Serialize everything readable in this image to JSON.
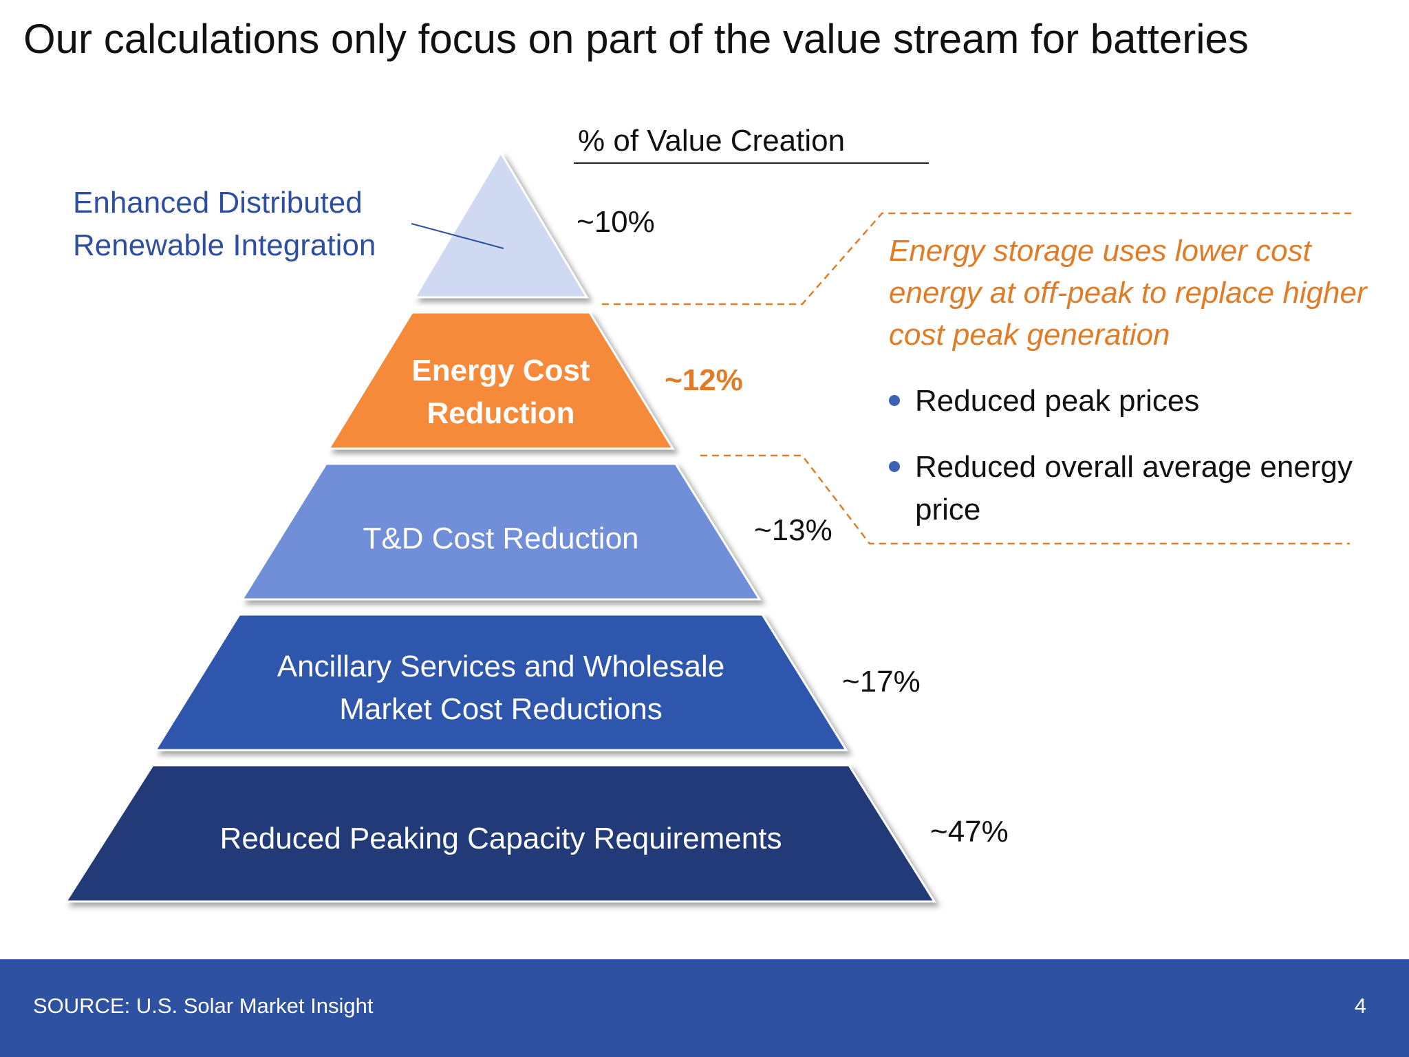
{
  "title": "Our calculations only focus on part of the value stream for batteries",
  "header": {
    "label": "% of Value Creation"
  },
  "colors": {
    "tier1": "#cfdaf2",
    "tier2": "#f58a3b",
    "tier3": "#6f8fd8",
    "tier4": "#2e56ad",
    "tier5": "#213b78",
    "accent_orange": "#e07b26",
    "label_blue": "#2e4f9f",
    "footer_blue": "#2e51a1"
  },
  "tiers": [
    {
      "label": "Enhanced Distributed Renewable Integration",
      "pct": "~10%"
    },
    {
      "label": "Energy Cost Reduction",
      "pct": "~12%"
    },
    {
      "label": "T&D Cost Reduction",
      "pct": "~13%"
    },
    {
      "label": "Ancillary Services and Wholesale Market Cost Reductions",
      "pct": "~17%"
    },
    {
      "label": "Reduced Peaking Capacity Requirements",
      "pct": "~47%"
    }
  ],
  "callout": {
    "text": "Energy storage uses lower cost energy at off-peak to replace higher cost peak generation",
    "bullets": [
      "Reduced peak prices",
      "Reduced overall average energy price"
    ]
  },
  "footer": {
    "source": "SOURCE: U.S. Solar Market Insight",
    "page": "4"
  }
}
